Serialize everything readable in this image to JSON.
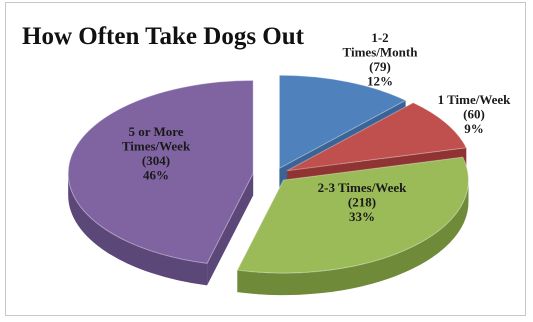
{
  "chart_data": {
    "type": "pie",
    "title": "How Often Take Dogs Out",
    "slices": [
      {
        "label": "1-2 Times/Month",
        "value": 79,
        "percent": "12%",
        "count_label": "(79)",
        "label_lines": [
          "1-2",
          "Times/Month"
        ],
        "color": "#4f81bd",
        "side": "#3a6496"
      },
      {
        "label": "1 Time/Week",
        "value": 60,
        "percent": "9%",
        "count_label": "(60)",
        "label_lines": [
          "1 Time/Week"
        ],
        "color": "#c0504d",
        "side": "#8f3432"
      },
      {
        "label": "2-3 Times/Week",
        "value": 218,
        "percent": "33%",
        "count_label": "(218)",
        "label_lines": [
          "2-3 Times/Week"
        ],
        "color": "#9bbb59",
        "side": "#6f8b3a"
      },
      {
        "label": "5 or More Times/Week",
        "value": 304,
        "percent": "46%",
        "count_label": "(304)",
        "label_lines": [
          "5 or More",
          "Times/Week"
        ],
        "color": "#8064a2",
        "side": "#5c4779"
      }
    ],
    "legend": "none",
    "style": "3d-exploded"
  }
}
